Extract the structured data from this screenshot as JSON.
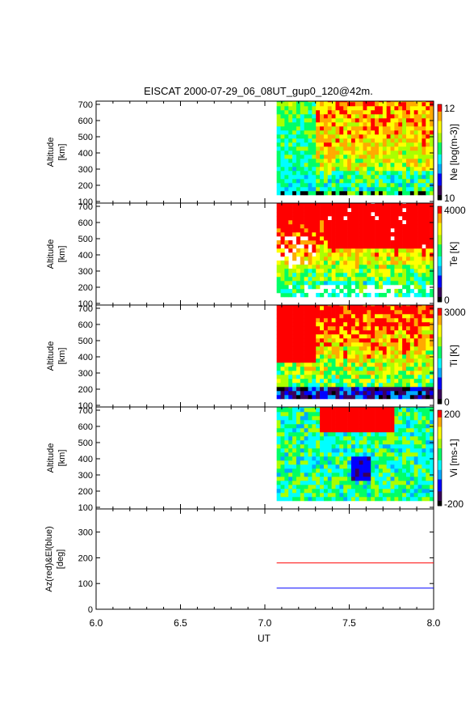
{
  "title": "EISCAT 2000-07-29_06_08UT_gup0_120@42m.",
  "colors": {
    "ne_scale": [
      "#000000",
      "#3a005a",
      "#0000ff",
      "#00aaff",
      "#00ffff",
      "#00ff66",
      "#aaff00",
      "#ffff00",
      "#ffaa00",
      "#ff0000"
    ],
    "azimuth_line": "#ff0000",
    "elevation_line": "#0000ff"
  },
  "chart_data": {
    "type": "heatmap",
    "x_label": "UT",
    "x_range": [
      6.0,
      8.0
    ],
    "x_ticks": [
      "6.0",
      "6.5",
      "7.0",
      "7.5",
      "8.0"
    ],
    "data_start_ut": 7.07,
    "data_end_ut": 8.0,
    "panels": [
      {
        "id": "ne",
        "ylabel_line1": "Altitude",
        "ylabel_line2": "[km]",
        "y_range": [
          90,
          720
        ],
        "y_ticks": [
          "100",
          "200",
          "300",
          "400",
          "500",
          "600",
          "700"
        ],
        "colorbar_label": "Ne [log(m-3)]",
        "cb_max": "12",
        "cb_min": "10",
        "v_range": [
          10,
          12
        ]
      },
      {
        "id": "te",
        "ylabel_line1": "Altitude",
        "ylabel_line2": "[km]",
        "y_range": [
          90,
          720
        ],
        "y_ticks": [
          "100",
          "200",
          "300",
          "400",
          "500",
          "600",
          "700"
        ],
        "colorbar_label": "Te [K]",
        "cb_max": "4000",
        "cb_min": "0",
        "v_range": [
          0,
          4000
        ]
      },
      {
        "id": "ti",
        "ylabel_line1": "Altitude",
        "ylabel_line2": "[km]",
        "y_range": [
          90,
          720
        ],
        "y_ticks": [
          "100",
          "200",
          "300",
          "400",
          "500",
          "600",
          "700"
        ],
        "colorbar_label": "Ti [K]",
        "cb_max": "3000",
        "cb_min": "0",
        "v_range": [
          0,
          3000
        ]
      },
      {
        "id": "vi",
        "ylabel_line1": "Altitude",
        "ylabel_line2": "[km]",
        "y_range": [
          90,
          720
        ],
        "y_ticks": [
          "100",
          "200",
          "300",
          "400",
          "500",
          "600",
          "700"
        ],
        "colorbar_label": "Vi [ms-1]",
        "cb_max": "200",
        "cb_min": "-200",
        "v_range": [
          -200,
          200
        ]
      }
    ],
    "pointing_panel": {
      "ylabel_line1": "Az(red)&El(blue)",
      "ylabel_line2": "[deg]",
      "y_range": [
        0,
        390
      ],
      "y_ticks": [
        "0",
        "100",
        "200",
        "300"
      ],
      "series": [
        {
          "name": "Az",
          "color": "#ff0000",
          "x": [
            7.07,
            8.0
          ],
          "y": [
            180,
            180
          ]
        },
        {
          "name": "El",
          "color": "#0000ff",
          "x": [
            7.07,
            8.0
          ],
          "y": [
            82,
            82
          ]
        }
      ]
    }
  }
}
